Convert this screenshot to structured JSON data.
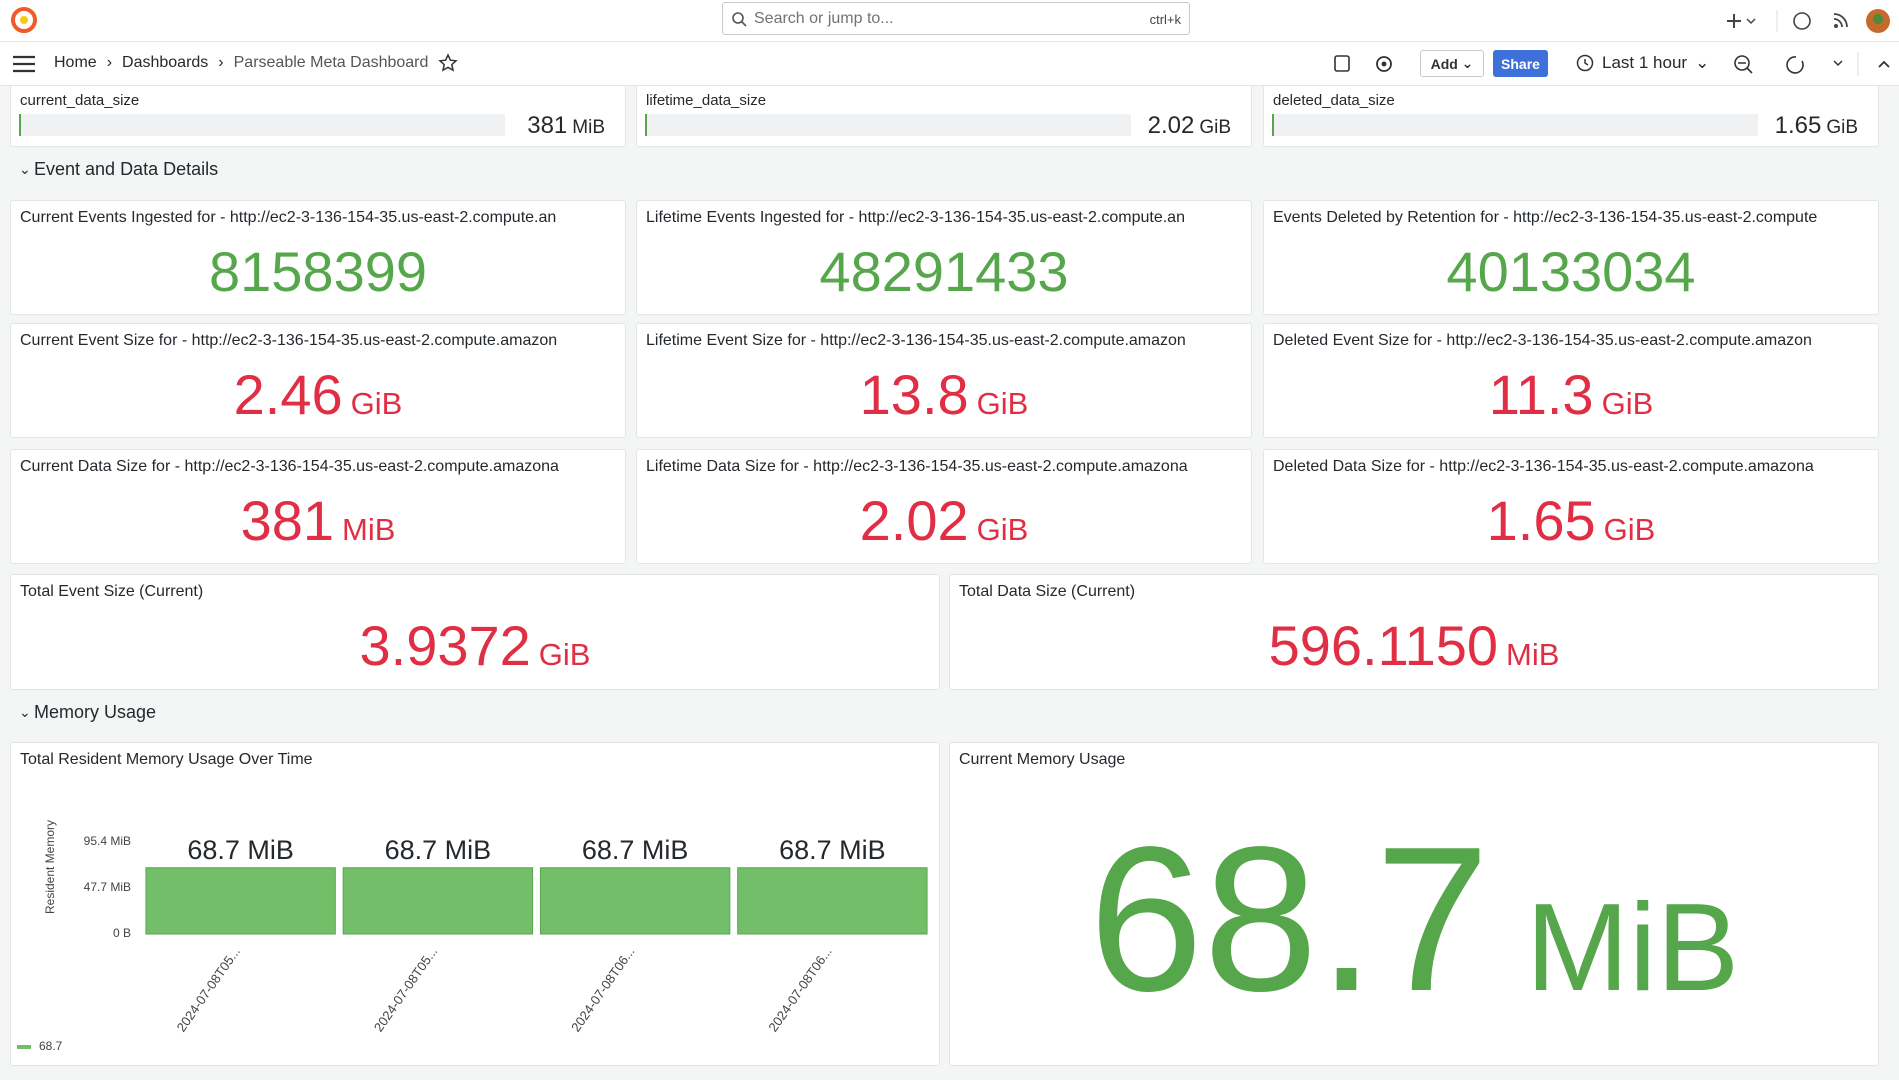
{
  "topbar": {
    "search_placeholder": "Search or jump to...",
    "shortcut": "ctrl+k"
  },
  "breadcrumbs": [
    "Home",
    "Dashboards",
    "Parseable Meta Dashboard"
  ],
  "toolbar": {
    "add": "Add",
    "share": "Share",
    "time_range": "Last 1 hour"
  },
  "gauges": [
    {
      "title": "current_data_size",
      "value": "381",
      "unit": "MiB"
    },
    {
      "title": "lifetime_data_size",
      "value": "2.02",
      "unit": "GiB"
    },
    {
      "title": "deleted_data_size",
      "value": "1.65",
      "unit": "GiB"
    }
  ],
  "rows": [
    "Event and Data Details",
    "Memory Usage"
  ],
  "stats": [
    {
      "title": "Current Events Ingested for - http://ec2-3-136-154-35.us-east-2.compute.an",
      "value": "8158399",
      "color": "#56a64b"
    },
    {
      "title": "Lifetime Events Ingested for - http://ec2-3-136-154-35.us-east-2.compute.an",
      "value": "48291433",
      "color": "#56a64b"
    },
    {
      "title": "Events Deleted by Retention for - http://ec2-3-136-154-35.us-east-2.compute",
      "value": "40133034",
      "color": "#56a64b"
    },
    {
      "title": "Current Event Size for - http://ec2-3-136-154-35.us-east-2.compute.amazon",
      "value": "2.46",
      "unit": "GiB",
      "color": "#e02f44"
    },
    {
      "title": "Lifetime Event Size for - http://ec2-3-136-154-35.us-east-2.compute.amazon",
      "value": "13.8",
      "unit": "GiB",
      "color": "#e02f44"
    },
    {
      "title": "Deleted Event Size for - http://ec2-3-136-154-35.us-east-2.compute.amazon",
      "value": "11.3",
      "unit": "GiB",
      "color": "#e02f44"
    },
    {
      "title": "Current Data Size for - http://ec2-3-136-154-35.us-east-2.compute.amazona",
      "value": "381",
      "unit": "MiB",
      "color": "#e02f44"
    },
    {
      "title": "Lifetime Data Size for - http://ec2-3-136-154-35.us-east-2.compute.amazona",
      "value": "2.02",
      "unit": "GiB",
      "color": "#e02f44"
    },
    {
      "title": "Deleted Data Size for - http://ec2-3-136-154-35.us-east-2.compute.amazona",
      "value": "1.65",
      "unit": "GiB",
      "color": "#e02f44"
    },
    {
      "title": "Total Event Size (Current)",
      "value": "3.9372",
      "unit": "GiB",
      "color": "#e02f44"
    },
    {
      "title": "Total Data Size (Current)",
      "value": "596.1150",
      "unit": "MiB",
      "color": "#e02f44"
    }
  ],
  "memory_chart": {
    "type": "bar",
    "title": "Total Resident Memory Usage Over Time",
    "y_label": "Resident Memory",
    "categories": [
      "2024-07-08T05...",
      "2024-07-08T05...",
      "2024-07-08T06...",
      "2024-07-08T06..."
    ],
    "series": [
      {
        "name": "68.7",
        "color": "#73bf69",
        "values": [
          68.7,
          68.7,
          68.7,
          68.7
        ],
        "value_labels": [
          "68.7 MiB",
          "68.7 MiB",
          "68.7 MiB",
          "68.7 MiB"
        ]
      }
    ],
    "ylim": [
      0,
      95.4
    ],
    "yticks": [
      {
        "value": 0,
        "label": "0 B"
      },
      {
        "value": 47.7,
        "label": "47.7 MiB"
      },
      {
        "value": 95.4,
        "label": "95.4 MiB"
      }
    ]
  },
  "current_memory": {
    "title": "Current Memory Usage",
    "value": "68.7",
    "unit": "MiB",
    "color": "#56a64b"
  }
}
